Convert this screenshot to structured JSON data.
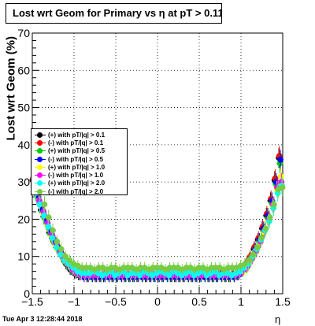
{
  "title": "Lost wrt Geom for Primary vs   η at pT > 0.11",
  "timestamp": "Tue Apr  3 12:28:44 2018",
  "chart_data": {
    "type": "scatter",
    "title": "Lost wrt Geom for Primary vs   η at pT > 0.11",
    "xlabel": "η",
    "ylabel": "Lost wrt Geom (%)",
    "xlim": [
      -1.5,
      1.5
    ],
    "ylim": [
      0,
      70
    ],
    "xticks": [
      "−1.5",
      "−1",
      "−0.5",
      "0",
      "0.5",
      "1",
      "1.5"
    ],
    "yticks": [
      "0",
      "10",
      "20",
      "30",
      "40",
      "50",
      "60",
      "70"
    ],
    "grid": true,
    "legend_position": "left",
    "x": [
      -1.475,
      -1.425,
      -1.375,
      -1.325,
      -1.275,
      -1.225,
      -1.175,
      -1.125,
      -1.075,
      -1.025,
      -0.975,
      -0.925,
      -0.875,
      -0.825,
      -0.775,
      -0.725,
      -0.675,
      -0.625,
      -0.575,
      -0.525,
      -0.475,
      -0.425,
      -0.375,
      -0.325,
      -0.275,
      -0.225,
      -0.175,
      -0.125,
      -0.075,
      -0.025,
      0.025,
      0.075,
      0.125,
      0.175,
      0.225,
      0.275,
      0.325,
      0.375,
      0.425,
      0.475,
      0.525,
      0.575,
      0.625,
      0.675,
      0.725,
      0.775,
      0.825,
      0.875,
      0.925,
      0.975,
      1.025,
      1.075,
      1.125,
      1.175,
      1.225,
      1.275,
      1.325,
      1.375,
      1.425,
      1.475
    ],
    "series": [
      {
        "name": "(+) with pT/|q| > 0.1",
        "color": "#000000",
        "values": [
          30.5,
          26.5,
          22.5,
          20,
          16.5,
          14,
          12,
          10,
          8,
          6.5,
          5.5,
          5,
          5,
          4.5,
          5,
          4.5,
          4.5,
          4.5,
          5,
          4.5,
          4.5,
          5,
          4.5,
          4.5,
          4.5,
          4.5,
          5,
          4.5,
          4.5,
          4.5,
          4.5,
          4.5,
          5,
          4.5,
          4.5,
          4.5,
          4.5,
          5,
          4.5,
          4.5,
          4.5,
          5,
          4.5,
          4.5,
          4.5,
          5,
          4.5,
          4.5,
          5,
          5,
          6,
          7.5,
          9.5,
          12,
          14.5,
          17.5,
          21,
          25,
          30.5,
          36.5
        ]
      },
      {
        "name": "(-) with pT/|q| > 0.1",
        "color": "#ff0000",
        "values": [
          31,
          27,
          23,
          20.5,
          17,
          14.5,
          12.5,
          10.5,
          8.5,
          7,
          6,
          5.5,
          5,
          5,
          5,
          5,
          5,
          5,
          5,
          5,
          5,
          5,
          5,
          5,
          5,
          5,
          5,
          5,
          5,
          5,
          5,
          5,
          5,
          5,
          5,
          5,
          5,
          5,
          5,
          5,
          5,
          5,
          5,
          5,
          5,
          5,
          5,
          5,
          5,
          5.5,
          6.5,
          8,
          10,
          12.5,
          15,
          18,
          21.5,
          25.5,
          31,
          37
        ]
      },
      {
        "name": "(+) with pT/|q| > 0.5",
        "color": "#00cc00",
        "values": [
          29,
          25.5,
          22,
          19,
          16,
          13.5,
          11.5,
          9.5,
          8,
          6.5,
          5.5,
          5,
          5,
          4.5,
          4.5,
          4.5,
          4.5,
          4.5,
          4.5,
          4.5,
          4.5,
          4.5,
          4.5,
          4.5,
          4.5,
          4.5,
          4.5,
          4.5,
          4.5,
          4.5,
          4.5,
          4.5,
          4.5,
          4.5,
          4.5,
          4.5,
          4.5,
          4.5,
          4.5,
          4.5,
          4.5,
          4.5,
          4.5,
          4.5,
          4.5,
          4.5,
          4.5,
          4.5,
          4.5,
          5,
          6,
          7,
          9,
          11.5,
          14,
          17,
          20.5,
          24.5,
          29.5,
          35
        ]
      },
      {
        "name": "(-) with pT/|q| > 0.5",
        "color": "#0000ff",
        "values": [
          30,
          26,
          22.5,
          19.5,
          16.5,
          14,
          12,
          10,
          8,
          6.5,
          5.5,
          5,
          4.5,
          4.5,
          4.5,
          4.5,
          4.5,
          4.5,
          4.5,
          4.5,
          4.5,
          4.5,
          4.5,
          4.5,
          4.5,
          4.5,
          4.5,
          4.5,
          4.5,
          4.5,
          4.5,
          4.5,
          4.5,
          4.5,
          4.5,
          4.5,
          4.5,
          4.5,
          4.5,
          4.5,
          4.5,
          4.5,
          4.5,
          4.5,
          4.5,
          4.5,
          4.5,
          4.5,
          4.5,
          5,
          6,
          7.5,
          9.5,
          12,
          14.5,
          17.5,
          21,
          25,
          30,
          36
        ]
      },
      {
        "name": "(+) with pT/|q| > 1.0",
        "color": "#ffff00",
        "values": [
          28,
          25,
          21.5,
          18.5,
          15.5,
          13,
          11,
          9.5,
          8,
          6.5,
          5.5,
          5,
          5,
          5,
          5,
          5,
          5,
          5,
          5,
          5,
          5,
          5,
          5,
          5,
          5,
          5,
          5,
          5,
          5,
          5,
          5,
          5,
          5,
          5,
          5,
          5,
          5,
          5,
          5,
          5,
          5,
          5,
          5,
          5,
          5,
          5,
          5,
          5,
          5,
          5.5,
          6,
          7,
          9,
          11,
          13.5,
          16.5,
          19.5,
          23.5,
          28,
          31.5
        ]
      },
      {
        "name": "(-) with pT/|q| > 1.0",
        "color": "#ff00ff",
        "values": [
          29,
          25,
          22,
          19,
          16,
          13.5,
          11,
          9.5,
          8,
          6.5,
          5.5,
          5,
          5,
          5,
          5,
          5,
          5,
          5,
          5,
          5,
          5,
          5,
          5,
          5,
          5,
          5,
          5,
          5,
          5,
          5,
          5,
          5,
          5,
          5,
          5,
          5,
          5,
          5,
          5,
          5,
          5,
          5,
          5,
          5,
          5,
          5,
          5,
          5,
          5,
          5.5,
          6.5,
          7.5,
          9.5,
          11.5,
          14,
          17,
          20,
          24,
          28.5,
          30
        ]
      },
      {
        "name": "(+) with pT/|q| > 2.0",
        "color": "#00ffff",
        "values": [
          27,
          24,
          21,
          18,
          15,
          12.5,
          10.5,
          9,
          8,
          7,
          6,
          5.5,
          5.5,
          5.5,
          6,
          5.5,
          5,
          5.5,
          6,
          5,
          5.5,
          6,
          5,
          5.5,
          5.5,
          5,
          6,
          5.5,
          5,
          5.5,
          6,
          5.5,
          5,
          6,
          5.5,
          5,
          5.5,
          6,
          5,
          5.5,
          6,
          5,
          5.5,
          6,
          5,
          5.5,
          5.5,
          5,
          5.5,
          6,
          7,
          8,
          10,
          12,
          14.5,
          17,
          19.5,
          23,
          27,
          29
        ]
      },
      {
        "name": "(-) with pT/|q| > 2.0",
        "color": "#77cc44",
        "values": [
          32,
          27.5,
          24,
          20.5,
          17,
          14,
          12,
          10,
          9,
          8,
          7.5,
          7,
          7,
          7,
          6.5,
          7,
          7,
          6.5,
          7,
          7,
          6.5,
          7,
          7,
          7,
          6.5,
          7,
          7,
          6.5,
          7,
          7,
          7,
          6.5,
          7,
          7,
          7,
          6.5,
          7,
          7,
          6.5,
          7,
          7,
          6.5,
          7,
          7,
          7,
          6.5,
          7,
          7,
          7,
          7.5,
          8,
          9,
          10.5,
          12.5,
          15,
          17.5,
          20.5,
          24,
          28,
          28.5
        ]
      }
    ]
  }
}
